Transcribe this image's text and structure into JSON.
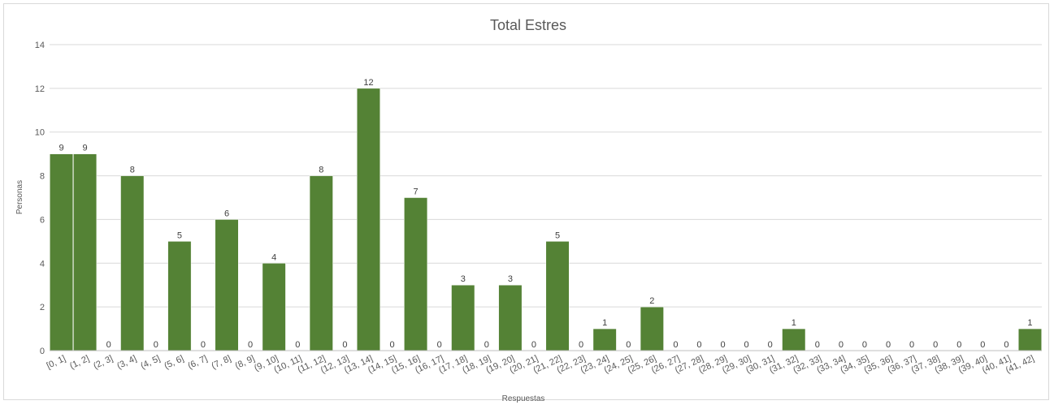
{
  "chart_data": {
    "type": "bar",
    "title": "Total Estres",
    "xlabel": "Respuestas",
    "ylabel": "Personas",
    "ylim": [
      0,
      14
    ],
    "yticks": [
      0,
      2,
      4,
      6,
      8,
      10,
      12,
      14
    ],
    "grid": true,
    "bar_color": "#548235",
    "categories": [
      "[0, 1]",
      "(1, 2]",
      "(2, 3]",
      "(3, 4]",
      "(4, 5]",
      "(5, 6]",
      "(6, 7]",
      "(7, 8]",
      "(8, 9]",
      "(9, 10]",
      "(10, 11]",
      "(11, 12]",
      "(12, 13]",
      "(13, 14]",
      "(14, 15]",
      "(15, 16]",
      "(16, 17]",
      "(17, 18]",
      "(18, 19]",
      "(19, 20]",
      "(20, 21]",
      "(21, 22]",
      "(22, 23]",
      "(23, 24]",
      "(24, 25]",
      "(25, 26]",
      "(26, 27]",
      "(27, 28]",
      "(28, 29]",
      "(29, 30]",
      "(30, 31]",
      "(31, 32]",
      "(32, 33]",
      "(33, 34]",
      "(34, 35]",
      "(35, 36]",
      "(36, 37]",
      "(37, 38]",
      "(38, 39]",
      "(39, 40]",
      "(40, 41]",
      "(41, 42]"
    ],
    "values": [
      9,
      9,
      0,
      8,
      0,
      5,
      0,
      6,
      0,
      4,
      0,
      8,
      0,
      12,
      0,
      7,
      0,
      3,
      0,
      3,
      0,
      5,
      0,
      1,
      0,
      2,
      0,
      0,
      0,
      0,
      0,
      1,
      0,
      0,
      0,
      0,
      0,
      0,
      0,
      0,
      0,
      1
    ]
  }
}
